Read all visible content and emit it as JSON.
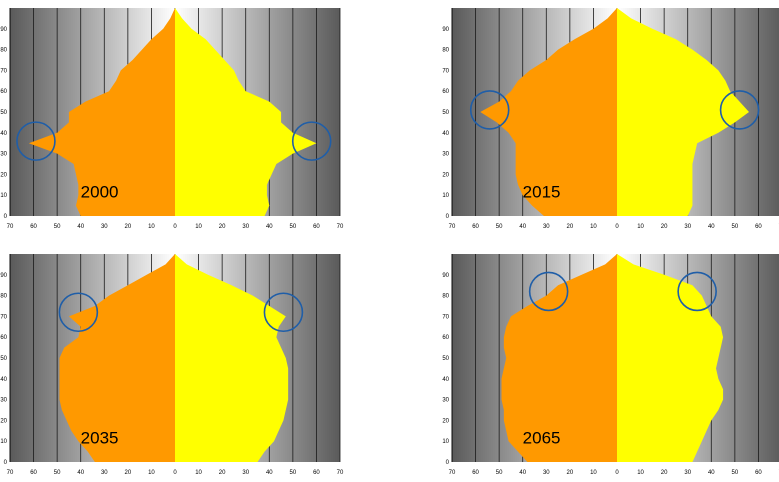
{
  "colors": {
    "male": "#ff9900",
    "female": "#ffff00",
    "circle": "#1f5ea8",
    "background_center": "#ffffff",
    "background_edge": "#5a5a5a",
    "gridline": "#1a1a1a"
  },
  "chart_data": [
    {
      "type": "area",
      "label": "2000",
      "xlim": [
        -70,
        70
      ],
      "ylim": [
        0,
        100
      ],
      "x_ticks": [
        "70",
        "60",
        "50",
        "40",
        "30",
        "20",
        "10",
        "0",
        "10",
        "20",
        "30",
        "40",
        "50",
        "60",
        "70"
      ],
      "y_ticks": [
        "0",
        "10",
        "20",
        "30",
        "40",
        "50",
        "60",
        "70",
        "80",
        "90"
      ],
      "ages": [
        0,
        5,
        10,
        15,
        20,
        25,
        30,
        35,
        40,
        45,
        50,
        55,
        60,
        65,
        70,
        75,
        80,
        85,
        90,
        95,
        100
      ],
      "male": [
        40,
        42,
        41,
        41,
        42,
        43,
        50,
        62,
        50,
        45,
        45,
        38,
        28,
        25,
        23,
        18,
        14,
        10,
        5,
        2,
        0
      ],
      "female": [
        38,
        40,
        39,
        39,
        41,
        43,
        50,
        60,
        50,
        45,
        45,
        40,
        30,
        27,
        25,
        21,
        17,
        13,
        7,
        3,
        0
      ],
      "markers": [
        {
          "x": -59,
          "y": 36
        },
        {
          "x": 58,
          "y": 36
        }
      ]
    },
    {
      "type": "area",
      "label": "2015",
      "xlim": [
        -70,
        70
      ],
      "ylim": [
        0,
        100
      ],
      "x_ticks": [
        "70",
        "60",
        "50",
        "40",
        "30",
        "20",
        "10",
        "0",
        "10",
        "20",
        "30",
        "40",
        "50",
        "60",
        "70"
      ],
      "y_ticks": [
        "0",
        "10",
        "20",
        "30",
        "40",
        "50",
        "60",
        "70",
        "80",
        "90"
      ],
      "ages": [
        0,
        5,
        10,
        15,
        20,
        25,
        30,
        35,
        40,
        45,
        50,
        55,
        60,
        65,
        70,
        75,
        80,
        85,
        90,
        95,
        100
      ],
      "male": [
        31,
        36,
        40,
        42,
        43,
        43,
        43,
        43,
        46,
        51,
        58,
        50,
        45,
        42,
        37,
        30,
        25,
        18,
        10,
        4,
        0
      ],
      "female": [
        30,
        32,
        32,
        32,
        32,
        32,
        33,
        34,
        43,
        50,
        56,
        52,
        48,
        46,
        43,
        38,
        32,
        25,
        15,
        6,
        0
      ],
      "markers": [
        {
          "x": -54,
          "y": 51
        },
        {
          "x": 52,
          "y": 51
        }
      ]
    },
    {
      "type": "area",
      "label": "2035",
      "xlim": [
        -70,
        70
      ],
      "ylim": [
        0,
        100
      ],
      "x_ticks": [
        "70",
        "60",
        "50",
        "40",
        "30",
        "20",
        "10",
        "0",
        "10",
        "20",
        "30",
        "40",
        "50",
        "60",
        "70"
      ],
      "y_ticks": [
        "0",
        "10",
        "20",
        "30",
        "40",
        "50",
        "60",
        "70",
        "80",
        "90"
      ],
      "ages": [
        0,
        5,
        10,
        15,
        20,
        25,
        30,
        35,
        40,
        45,
        50,
        55,
        60,
        65,
        70,
        75,
        80,
        85,
        90,
        95,
        100
      ],
      "male": [
        34,
        37,
        41,
        44,
        46,
        48,
        49,
        49,
        49,
        49,
        49,
        47,
        41,
        40,
        45,
        34,
        28,
        20,
        12,
        4,
        0
      ],
      "female": [
        35,
        38,
        42,
        44,
        46,
        47,
        48,
        48,
        48,
        48,
        47,
        45,
        43,
        44,
        47,
        40,
        33,
        24,
        14,
        5,
        0
      ],
      "markers": [
        {
          "x": -41,
          "y": 72
        },
        {
          "x": 46,
          "y": 72
        }
      ]
    },
    {
      "type": "area",
      "label": "2065",
      "xlim": [
        -70,
        70
      ],
      "ylim": [
        0,
        100
      ],
      "x_ticks": [
        "70",
        "60",
        "50",
        "40",
        "30",
        "20",
        "10",
        "0",
        "10",
        "20",
        "30",
        "40",
        "50",
        "60",
        "70"
      ],
      "y_ticks": [
        "0",
        "10",
        "20",
        "30",
        "40",
        "50",
        "60",
        "70",
        "80",
        "90"
      ],
      "ages": [
        0,
        5,
        10,
        15,
        20,
        25,
        30,
        35,
        40,
        45,
        50,
        55,
        60,
        65,
        70,
        75,
        80,
        85,
        90,
        95,
        100
      ],
      "male": [
        38,
        42,
        46,
        47,
        48,
        48,
        49,
        49,
        49,
        48,
        47,
        48,
        48,
        47,
        45,
        38,
        30,
        25,
        15,
        5,
        0
      ],
      "female": [
        32,
        34,
        36,
        38,
        40,
        43,
        45,
        45,
        43,
        42,
        43,
        44,
        45,
        44,
        40,
        38,
        36,
        32,
        20,
        7,
        0
      ],
      "markers": [
        {
          "x": -29,
          "y": 82
        },
        {
          "x": 34,
          "y": 82
        }
      ]
    }
  ]
}
